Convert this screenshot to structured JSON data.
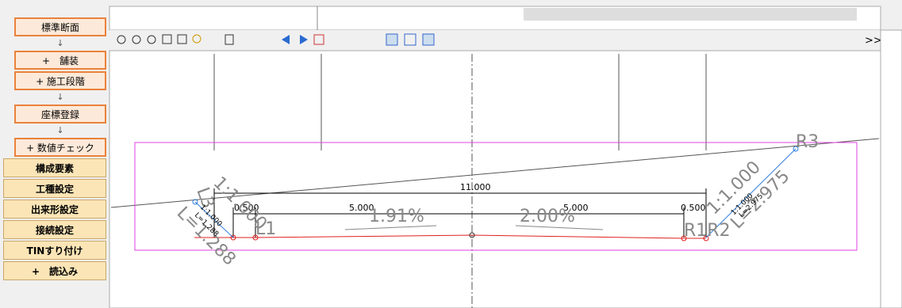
{
  "sidebar": {
    "items": [
      "標準断面",
      "↓",
      "+　舗装",
      "+ 施工段階",
      "↓",
      "座標登録",
      "↓",
      "+ 数値チェック",
      "構成要素",
      "工種設定",
      "出来形設定",
      "接続設定",
      "TINすり付け",
      "+　読込み"
    ]
  },
  "toolbar": {
    "more": ">>"
  },
  "drawing": {
    "total_width": "11.000",
    "left_shoulder": "0.500",
    "left_width": "5.000",
    "left_slope": "1.91%",
    "right_slope": "2.00%",
    "right_width": "5.000",
    "right_shoulder": "0.500",
    "point_l1": "L1",
    "point_l3": "L3",
    "point_r1r2": "R1R2",
    "point_r3": "R3",
    "left_grade": "1:1.000",
    "left_grade_small": "1:1.000",
    "left_length": "L=1.288",
    "left_length_small": "L=1.288",
    "right_grade": "1:1.000",
    "right_grade_small": "1:1.000",
    "right_length": "L=2.975",
    "right_length_small": "L=2.975"
  }
}
